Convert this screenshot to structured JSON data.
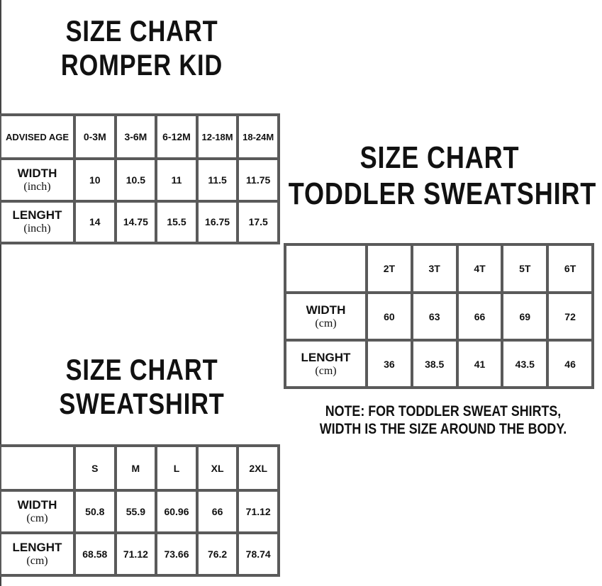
{
  "romper": {
    "title_line1": "SIZE CHART",
    "title_line2": "ROMPER KID",
    "header_label": "ADVISED AGE",
    "columns": [
      "0-3M",
      "3-6M",
      "6-12M",
      "12-18M",
      "18-24M"
    ],
    "rows": [
      {
        "label": "WIDTH",
        "unit": "(inch)",
        "values": [
          "10",
          "10.5",
          "11",
          "11.5",
          "11.75"
        ]
      },
      {
        "label": "LENGHT",
        "unit": "(inch)",
        "values": [
          "14",
          "14.75",
          "15.5",
          "16.75",
          "17.5"
        ]
      }
    ]
  },
  "toddler": {
    "title_line1": "SIZE CHART",
    "title_line2": "TODDLER SWEATSHIRT",
    "columns": [
      "2T",
      "3T",
      "4T",
      "5T",
      "6T"
    ],
    "rows": [
      {
        "label": "WIDTH",
        "unit": "(cm)",
        "values": [
          "60",
          "63",
          "66",
          "69",
          "72"
        ]
      },
      {
        "label": "LENGHT",
        "unit": "(cm)",
        "values": [
          "36",
          "38.5",
          "41",
          "43.5",
          "46"
        ]
      }
    ],
    "note_line1": "NOTE: FOR TODDLER SWEAT SHIRTS,",
    "note_line2": "WIDTH IS THE SIZE AROUND THE BODY."
  },
  "sweatshirt": {
    "title_line1": "SIZE CHART",
    "title_line2": "SWEATSHIRT",
    "columns": [
      "S",
      "M",
      "L",
      "XL",
      "2XL"
    ],
    "rows": [
      {
        "label": "WIDTH",
        "unit": "(cm)",
        "values": [
          "50.8",
          "55.9",
          "60.96",
          "66",
          "71.12"
        ]
      },
      {
        "label": "LENGHT",
        "unit": "(cm)",
        "values": [
          "68.58",
          "71.12",
          "73.66",
          "76.2",
          "78.74"
        ]
      }
    ]
  }
}
